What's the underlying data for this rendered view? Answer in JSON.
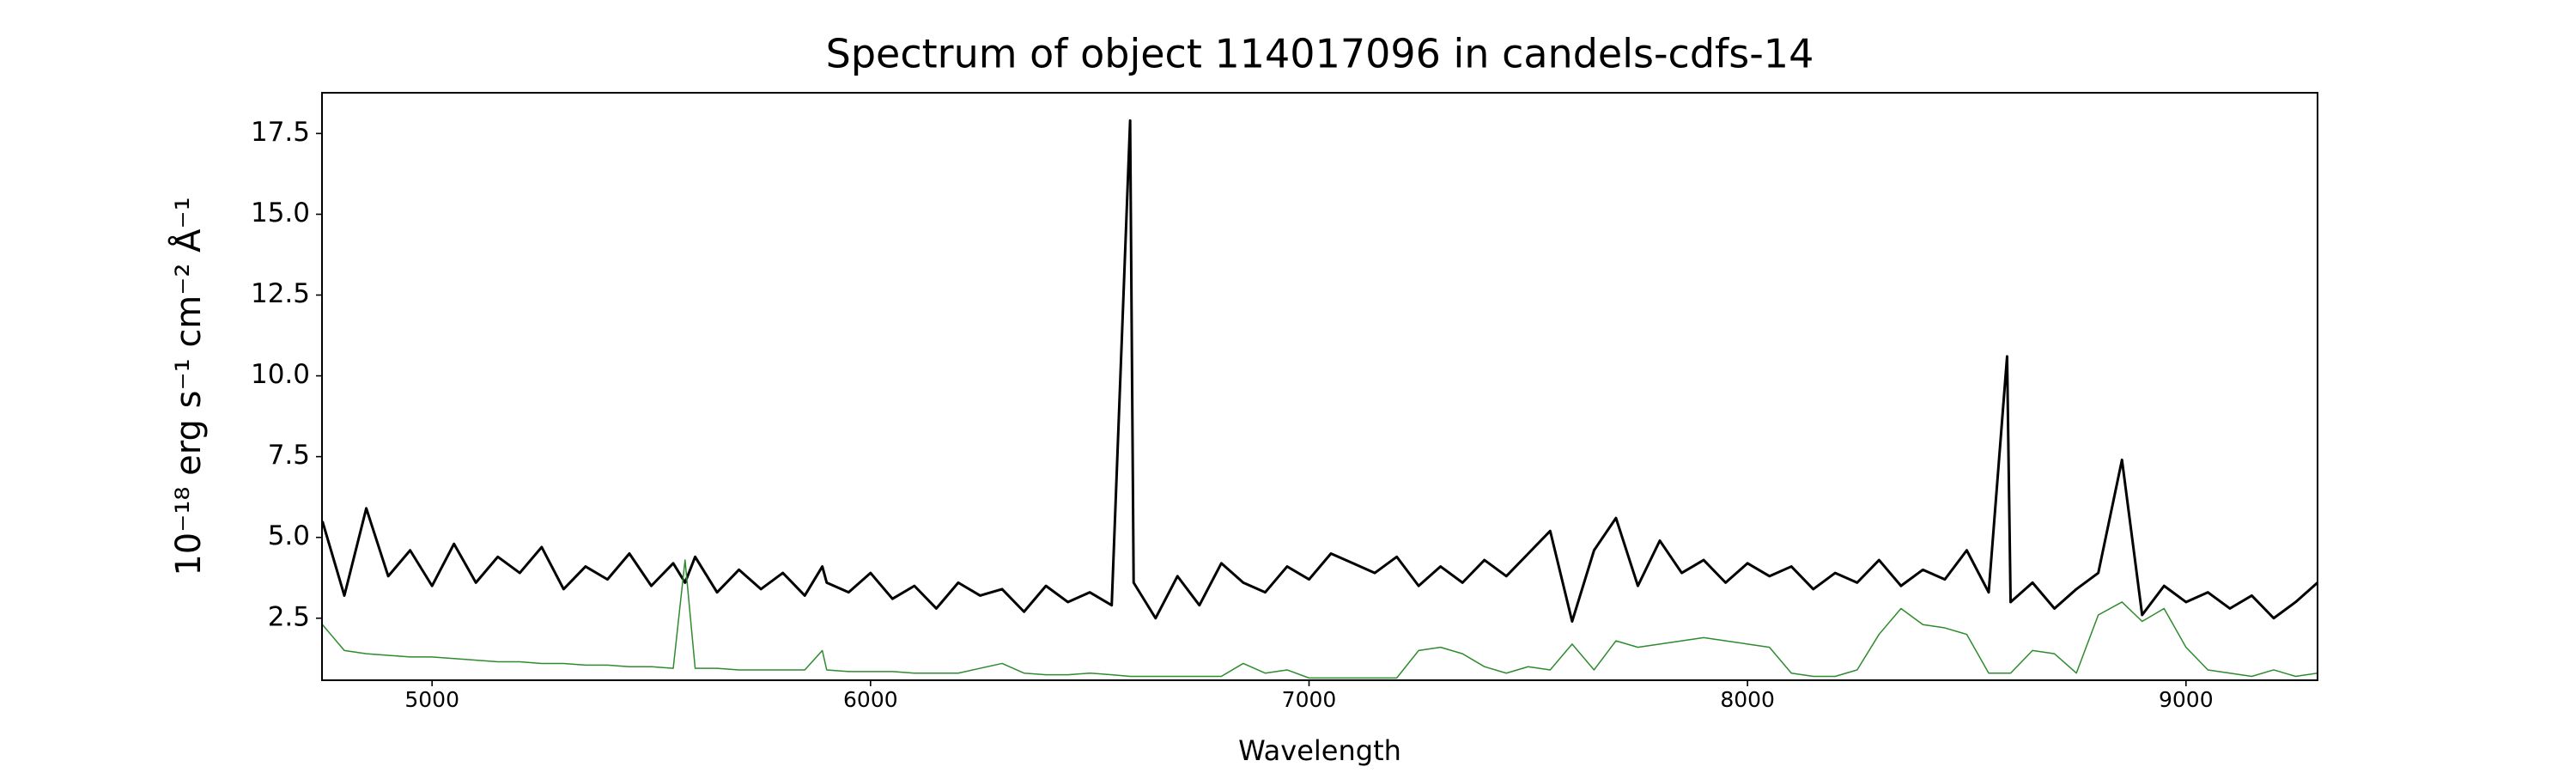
{
  "chart_data": {
    "type": "line",
    "title": "Spectrum of object 114017096 in candels-cdfs-14",
    "x_label": "Wavelength",
    "y_label": "10⁻¹⁸ erg s⁻¹ cm⁻² Å⁻¹",
    "xlim": [
      4749,
      9300
    ],
    "ylim": [
      0.58,
      18.76
    ],
    "xticks": [
      5000,
      6000,
      7000,
      8000,
      9000
    ],
    "yticks": [
      2.5,
      {
        "value": 5,
        "label": "5.0"
      },
      7.5,
      {
        "value": 10,
        "label": "10.0"
      },
      12.5,
      {
        "value": 15,
        "label": "15.0"
      },
      17.5
    ],
    "grid": false,
    "x": [
      4750,
      4800,
      4850,
      4900,
      4950,
      5000,
      5050,
      5100,
      5150,
      5200,
      5250,
      5300,
      5350,
      5400,
      5450,
      5500,
      5550,
      5577,
      5600,
      5650,
      5700,
      5750,
      5800,
      5850,
      5890,
      5900,
      5950,
      6000,
      6050,
      6100,
      6150,
      6200,
      6250,
      6300,
      6350,
      6400,
      6450,
      6500,
      6550,
      6592,
      6600,
      6650,
      6700,
      6750,
      6800,
      6850,
      6900,
      6950,
      7000,
      7050,
      7100,
      7150,
      7200,
      7250,
      7300,
      7350,
      7400,
      7450,
      7500,
      7550,
      7600,
      7650,
      7700,
      7750,
      7800,
      7850,
      7900,
      7950,
      8000,
      8050,
      8100,
      8150,
      8200,
      8250,
      8300,
      8350,
      8400,
      8450,
      8500,
      8550,
      8592,
      8600,
      8650,
      8700,
      8750,
      8800,
      8854,
      8900,
      8950,
      9000,
      9050,
      9100,
      9150,
      9200,
      9250,
      9300
    ],
    "series": [
      {
        "color": "#000000",
        "width": 3,
        "values": [
          5.5,
          3.2,
          5.9,
          3.8,
          4.6,
          3.5,
          4.8,
          3.6,
          4.4,
          3.9,
          4.7,
          3.4,
          4.1,
          3.7,
          4.5,
          3.5,
          4.2,
          3.6,
          4.4,
          3.3,
          4.0,
          3.4,
          3.9,
          3.2,
          4.1,
          3.6,
          3.3,
          3.9,
          3.1,
          3.5,
          2.8,
          3.6,
          3.2,
          3.4,
          2.7,
          3.5,
          3.0,
          3.3,
          2.9,
          17.9,
          3.6,
          2.5,
          3.8,
          2.9,
          4.2,
          3.6,
          3.3,
          4.1,
          3.7,
          4.5,
          4.2,
          3.9,
          4.4,
          3.5,
          4.1,
          3.6,
          4.3,
          3.8,
          4.5,
          5.2,
          2.4,
          4.6,
          5.6,
          3.5,
          4.9,
          3.9,
          4.3,
          3.6,
          4.2,
          3.8,
          4.1,
          3.4,
          3.9,
          3.6,
          4.3,
          3.5,
          4.0,
          3.7,
          4.6,
          3.3,
          10.6,
          3.0,
          3.6,
          2.8,
          3.4,
          3.9,
          7.4,
          2.6,
          3.5,
          3.0,
          3.3,
          2.8,
          3.2,
          2.5,
          3.0,
          3.6
        ]
      },
      {
        "color": "#2e8b2e",
        "width": 1.5,
        "values": [
          2.3,
          1.5,
          1.4,
          1.35,
          1.3,
          1.3,
          1.25,
          1.2,
          1.15,
          1.15,
          1.1,
          1.1,
          1.05,
          1.05,
          1.0,
          1.0,
          0.95,
          4.3,
          0.95,
          0.95,
          0.9,
          0.9,
          0.9,
          0.9,
          1.5,
          0.9,
          0.85,
          0.85,
          0.85,
          0.8,
          0.8,
          0.8,
          0.95,
          1.1,
          0.8,
          0.75,
          0.75,
          0.8,
          0.75,
          0.7,
          0.7,
          0.7,
          0.7,
          0.7,
          0.7,
          1.1,
          0.8,
          0.9,
          0.65,
          0.65,
          0.65,
          0.65,
          0.65,
          1.5,
          1.6,
          1.4,
          1.0,
          0.8,
          1.0,
          0.9,
          1.7,
          0.9,
          1.8,
          1.6,
          1.7,
          1.8,
          1.9,
          1.8,
          1.7,
          1.6,
          0.8,
          0.7,
          0.7,
          0.9,
          2.0,
          2.8,
          2.3,
          2.2,
          2.0,
          0.8,
          0.8,
          0.8,
          1.5,
          1.4,
          0.8,
          2.6,
          3.0,
          2.4,
          2.8,
          1.6,
          0.9,
          0.8,
          0.7,
          0.9,
          0.7,
          0.8
        ]
      }
    ]
  }
}
